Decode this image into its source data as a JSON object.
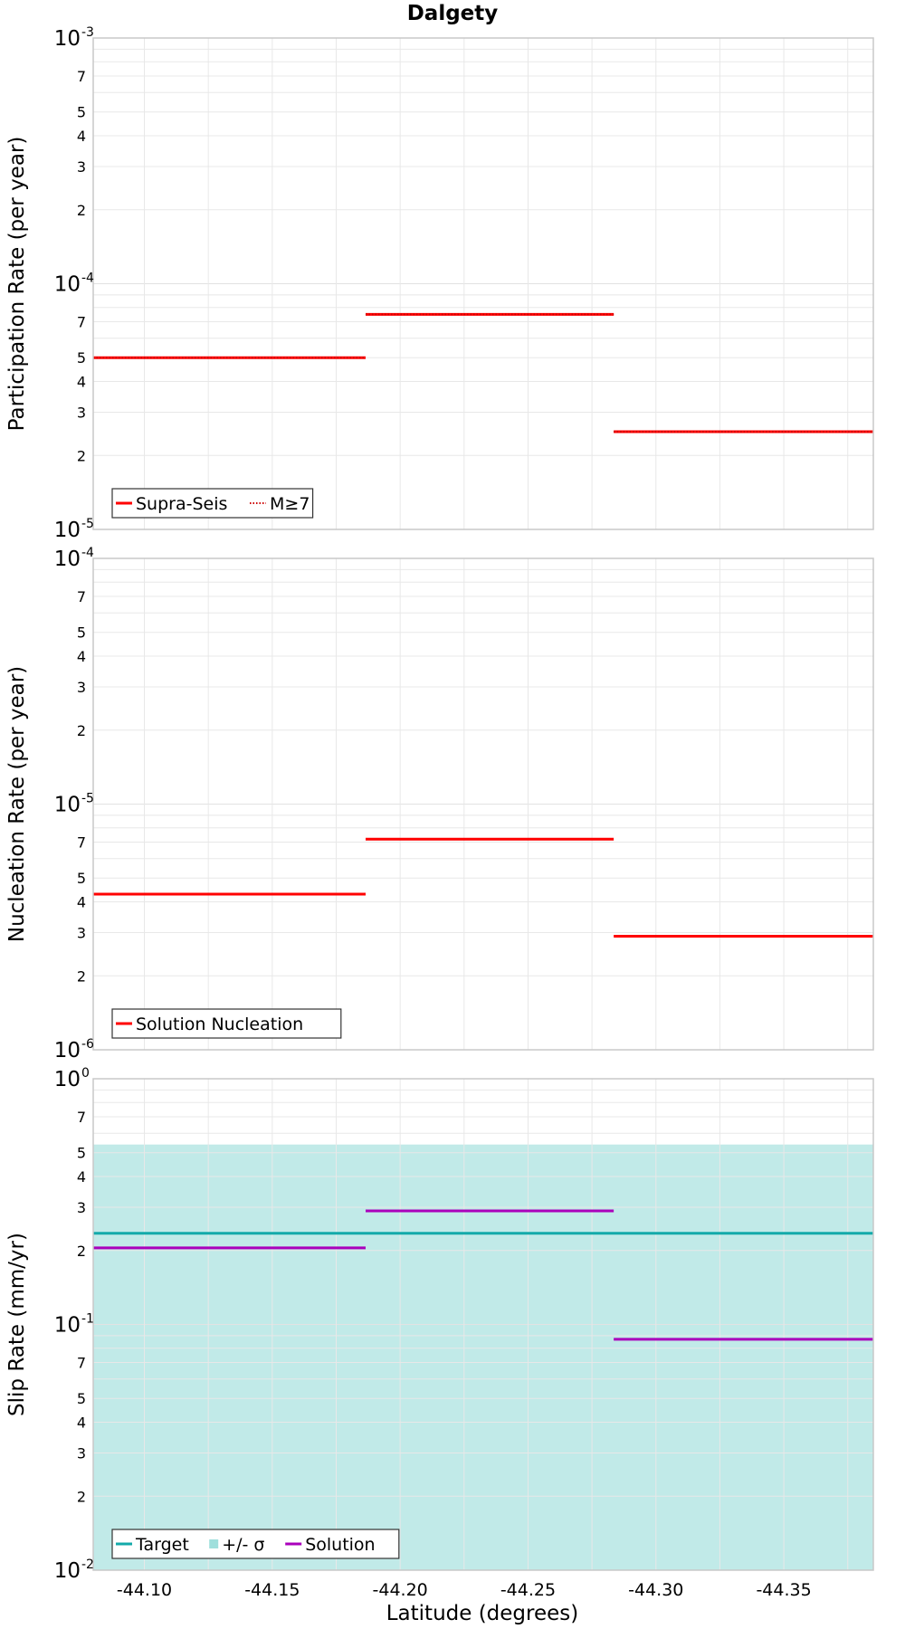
{
  "chart_data": {
    "type": "line",
    "title": "Dalgety",
    "xlabel": "Latitude (degrees)",
    "xlim": [
      -44.08,
      -44.385
    ],
    "x_ticks": [
      -44.1,
      -44.15,
      -44.2,
      -44.25,
      -44.3,
      -44.35
    ],
    "x_tick_labels": [
      "-44.10",
      "-44.15",
      "-44.20",
      "-44.25",
      "-44.30",
      "-44.35"
    ],
    "panels": [
      {
        "id": "participation",
        "ylabel": "Participation Rate (per year)",
        "yscale": "log",
        "ylim": [
          1e-05,
          0.001
        ],
        "decade_labels": [
          {
            "base": "10",
            "exp": "-5",
            "value": 1e-05
          },
          {
            "base": "10",
            "exp": "-4",
            "value": 0.0001
          },
          {
            "base": "10",
            "exp": "-3",
            "value": 0.001
          }
        ],
        "minor_labels": [
          "2",
          "3",
          "4",
          "5",
          "7"
        ],
        "series": [
          {
            "name": "Supra-Seis",
            "color": "#ff0000",
            "style": "solid",
            "segments": [
              [
                -44.08,
                -44.1865,
                5e-05
              ],
              [
                -44.1865,
                -44.2835,
                7.5e-05
              ],
              [
                -44.2835,
                -44.385,
                2.5e-05
              ]
            ]
          },
          {
            "name": "M≥7",
            "color": "#ff0000",
            "style": "dotted",
            "segments": [
              [
                -44.08,
                -44.1865,
                5e-05
              ],
              [
                -44.1865,
                -44.2835,
                7.5e-05
              ],
              [
                -44.2835,
                -44.385,
                2.5e-05
              ]
            ]
          }
        ],
        "legend": [
          "Supra-Seis",
          "M≥7"
        ]
      },
      {
        "id": "nucleation",
        "ylabel": "Nucleation Rate (per year)",
        "yscale": "log",
        "ylim": [
          1e-06,
          0.0001
        ],
        "decade_labels": [
          {
            "base": "10",
            "exp": "-6",
            "value": 1e-06
          },
          {
            "base": "10",
            "exp": "-5",
            "value": 1e-05
          },
          {
            "base": "10",
            "exp": "-4",
            "value": 0.0001
          }
        ],
        "minor_labels": [
          "2",
          "3",
          "4",
          "5",
          "7"
        ],
        "series": [
          {
            "name": "Solution Nucleation",
            "color": "#ff0000",
            "style": "solid",
            "segments": [
              [
                -44.08,
                -44.1865,
                4.3e-06
              ],
              [
                -44.1865,
                -44.2835,
                7.2e-06
              ],
              [
                -44.2835,
                -44.385,
                2.9e-06
              ]
            ]
          }
        ],
        "legend": [
          "Solution Nucleation"
        ]
      },
      {
        "id": "slip",
        "ylabel": "Slip Rate (mm/yr)",
        "yscale": "log",
        "ylim": [
          0.01,
          1
        ],
        "decade_labels": [
          {
            "base": "10",
            "exp": "-2",
            "value": 0.01
          },
          {
            "base": "10",
            "exp": "-1",
            "value": 0.1
          },
          {
            "base": "10",
            "exp": "0",
            "value": 1
          }
        ],
        "minor_labels": [
          "2",
          "3",
          "4",
          "5",
          "7"
        ],
        "band": {
          "name": "+/- σ",
          "color": "#9fdfdc",
          "opacity": 0.65,
          "low": 0.01,
          "high": 0.54
        },
        "series": [
          {
            "name": "Target",
            "color": "#13aaaa",
            "style": "solid",
            "segments": [
              [
                -44.08,
                -44.385,
                0.235
              ]
            ]
          },
          {
            "name": "Solution",
            "color": "#aa00bb",
            "style": "solid",
            "segments": [
              [
                -44.08,
                -44.1865,
                0.205
              ],
              [
                -44.1865,
                -44.2835,
                0.29
              ],
              [
                -44.2835,
                -44.385,
                0.087
              ]
            ]
          }
        ],
        "legend": [
          "Target",
          "+/- σ",
          "Solution"
        ]
      }
    ]
  }
}
